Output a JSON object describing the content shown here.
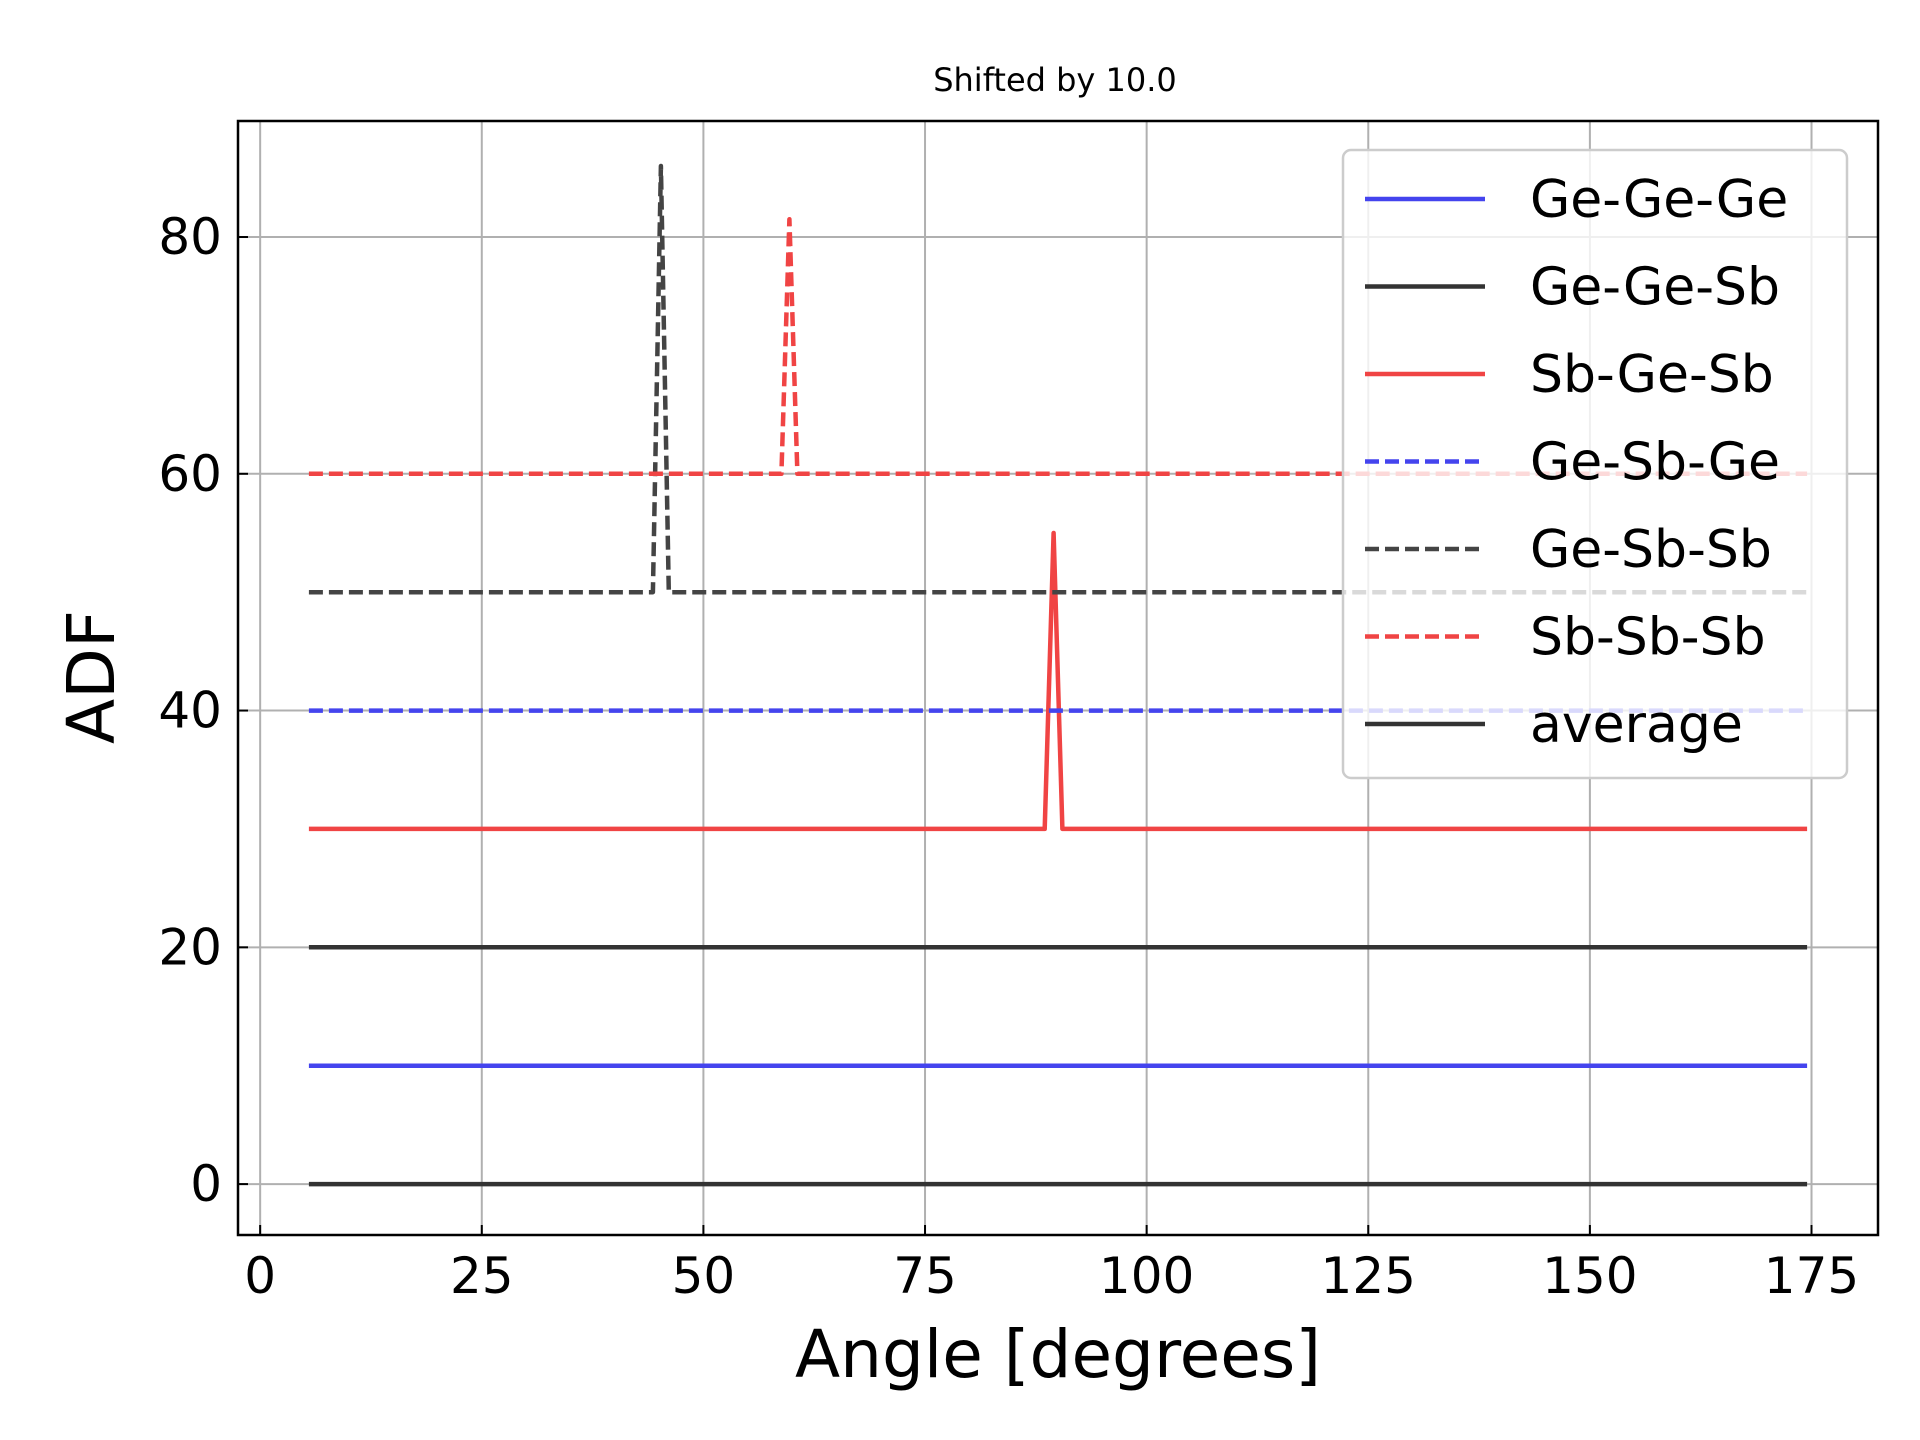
{
  "chart_data": {
    "type": "line",
    "title": "Shifted by 10.0",
    "xlabel": "Angle [degrees]",
    "ylabel": "ADF",
    "xlim": [
      -2.5,
      182.5
    ],
    "ylim": [
      -4.3,
      89.8
    ],
    "xticks": [
      0,
      25,
      50,
      75,
      100,
      125,
      150,
      175
    ],
    "yticks": [
      0,
      20,
      40,
      60,
      80
    ],
    "grid": true,
    "legend_position": "top-right",
    "series": [
      {
        "name": "average",
        "color": "#333333",
        "style": "solid",
        "offset": 0,
        "points": [
          [
            5.5,
            0
          ],
          [
            174.5,
            0
          ]
        ]
      },
      {
        "name": "Ge-Ge-Ge",
        "color": "#4444ee",
        "style": "solid",
        "offset": 10,
        "points": [
          [
            5.5,
            10
          ],
          [
            174.5,
            10
          ]
        ]
      },
      {
        "name": "Ge-Ge-Sb",
        "color": "#333333",
        "style": "solid",
        "offset": 20,
        "points": [
          [
            5.5,
            20
          ],
          [
            174.5,
            20
          ]
        ]
      },
      {
        "name": "Sb-Ge-Sb",
        "color": "#f04444",
        "style": "solid",
        "offset": 30,
        "points": [
          [
            5.5,
            30
          ],
          [
            88.5,
            30
          ],
          [
            89.5,
            55
          ],
          [
            90.5,
            30
          ],
          [
            174.5,
            30
          ]
        ]
      },
      {
        "name": "Ge-Sb-Ge",
        "color": "#4444ee",
        "style": "dashed",
        "offset": 40,
        "points": [
          [
            5.5,
            40
          ],
          [
            174.5,
            40
          ]
        ]
      },
      {
        "name": "Ge-Sb-Sb",
        "color": "#444444",
        "style": "dashed",
        "offset": 50,
        "points": [
          [
            5.5,
            50
          ],
          [
            44.3,
            50
          ],
          [
            45.2,
            86
          ],
          [
            46.1,
            50
          ],
          [
            174.5,
            50
          ]
        ]
      },
      {
        "name": "Sb-Sb-Sb",
        "color": "#f04444",
        "style": "dashed",
        "offset": 60,
        "points": [
          [
            5.5,
            60
          ],
          [
            58.8,
            60
          ],
          [
            59.7,
            81.5
          ],
          [
            60.6,
            60
          ],
          [
            174.5,
            60
          ]
        ]
      }
    ],
    "legend": [
      {
        "label": "Ge-Ge-Ge",
        "color": "#4444ee",
        "style": "solid"
      },
      {
        "label": "Ge-Ge-Sb",
        "color": "#333333",
        "style": "solid"
      },
      {
        "label": "Sb-Ge-Sb",
        "color": "#f04444",
        "style": "solid"
      },
      {
        "label": "Ge-Sb-Ge",
        "color": "#4444ee",
        "style": "dashed"
      },
      {
        "label": "Ge-Sb-Sb",
        "color": "#444444",
        "style": "dashed"
      },
      {
        "label": "Sb-Sb-Sb",
        "color": "#f04444",
        "style": "dashed"
      },
      {
        "label": "average",
        "color": "#333333",
        "style": "solid"
      }
    ]
  }
}
